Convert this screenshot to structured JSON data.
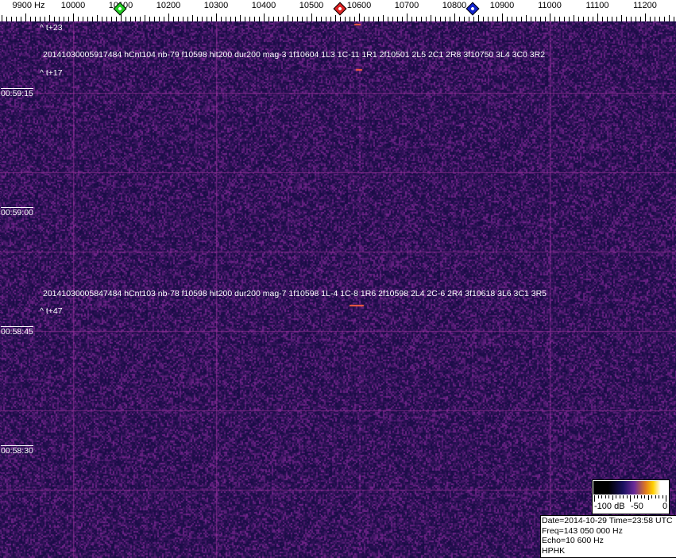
{
  "frequency_axis": {
    "labels": [
      "9900 Hz",
      "10000",
      "10100",
      "10200",
      "10300",
      "10400",
      "10500",
      "10600",
      "10700",
      "10800",
      "10900",
      "11000",
      "11100",
      "11200"
    ],
    "values": [
      9900,
      10000,
      10100,
      10200,
      10300,
      10400,
      10500,
      10600,
      10700,
      10800,
      10900,
      11000,
      11100,
      11200
    ]
  },
  "markers": [
    {
      "name": "green-marker",
      "freq": 10098,
      "color": "#22cc22"
    },
    {
      "name": "red-marker",
      "freq": 10560,
      "color": "#dd2222"
    },
    {
      "name": "blue-marker",
      "freq": 10838,
      "color": "#1122cc"
    }
  ],
  "annotations": {
    "t1": "^ t+23",
    "event1": "20141030005917484 hCnt104 nb-79 f10598 hit200 dur200 mag-3 1f10604 1L3 1C-11 1R1 2f10501 2L5 2C1 2R8 3f10750 3L4 3C0 3R2",
    "t2": "^ t+17",
    "event2": "20141030005847484 hCnt103 nb-78 f10598 hit200 dur200 mag-7 1f10598 1L-4 1C-8 1R6 2f10598 2L4 2C-6 2R4 3f10618 3L6 3C1 3R5",
    "t3": "^ t+47"
  },
  "time_labels": [
    "00:59:15",
    "00:59:00",
    "00:58:45",
    "00:58:30"
  ],
  "colorbar": {
    "min_label": "-100 dB",
    "mid_label": "-50",
    "max_label": "0"
  },
  "info": {
    "line1": "Date=2014-10-29 Time=23:58 UTC",
    "line2": "Freq=143 050 000 Hz",
    "line3": "Echo=10 600 Hz",
    "line4": "HPHK"
  },
  "colors": {
    "background": "#2a1a70",
    "grid": "#8a2a8a",
    "echo": "#ff6040"
  }
}
